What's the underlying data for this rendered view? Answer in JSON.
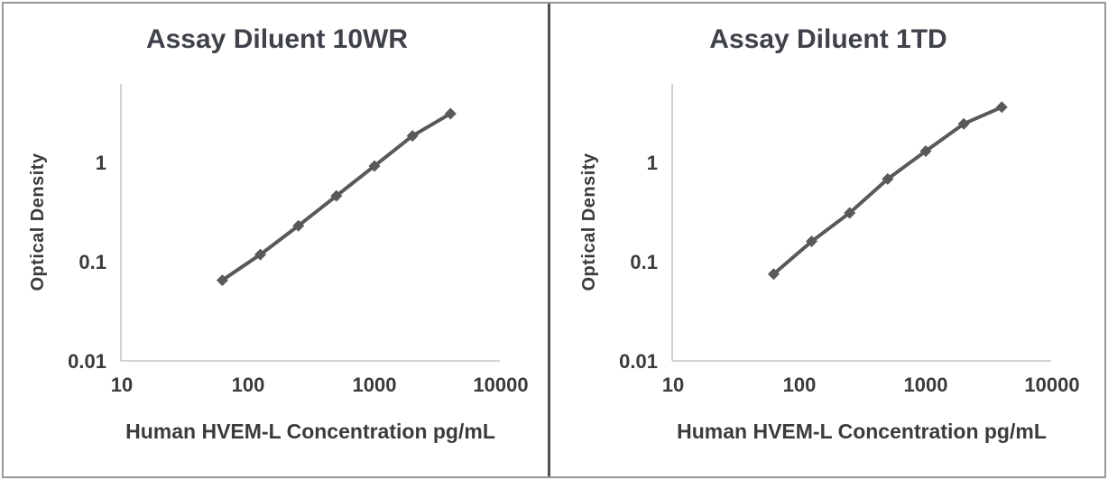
{
  "figure": {
    "colors": {
      "background": "#ffffff",
      "border": "#979797",
      "divider": "#4f4f4f",
      "series": "#595959",
      "axis_line": "#c6c6c6",
      "text": "#3b3b3b",
      "title": "#3f4349"
    }
  },
  "chart_data": [
    {
      "type": "line",
      "title": "Assay Diluent 10WR",
      "xlabel": "Human HVEM-L Concentration pg/mL",
      "ylabel": "Optical Density",
      "x_scale": "log",
      "y_scale": "log",
      "xlim": [
        10,
        10000
      ],
      "ylim": [
        0.01,
        6.2
      ],
      "x_ticks": [
        10,
        100,
        1000,
        10000
      ],
      "y_ticks": [
        0.01,
        0.1,
        1
      ],
      "grid": false,
      "legend": false,
      "marker": "diamond",
      "series": [
        {
          "x": [
            62.5,
            125,
            250,
            500,
            1000,
            2000,
            4000
          ],
          "y": [
            0.065,
            0.118,
            0.23,
            0.46,
            0.92,
            1.85,
            3.1
          ],
          "color": "#595959"
        }
      ]
    },
    {
      "type": "line",
      "title": "Assay Diluent 1TD",
      "xlabel": "Human HVEM-L Concentration pg/mL",
      "ylabel": "Optical Density",
      "x_scale": "log",
      "y_scale": "log",
      "xlim": [
        10,
        10000
      ],
      "ylim": [
        0.01,
        6.2
      ],
      "x_ticks": [
        10,
        100,
        1000,
        10000
      ],
      "y_ticks": [
        0.01,
        0.1,
        1
      ],
      "grid": false,
      "legend": false,
      "marker": "diamond",
      "series": [
        {
          "x": [
            62.5,
            125,
            250,
            500,
            1000,
            2000,
            4000
          ],
          "y": [
            0.075,
            0.16,
            0.31,
            0.68,
            1.3,
            2.45,
            3.6
          ],
          "color": "#595959"
        }
      ]
    }
  ]
}
